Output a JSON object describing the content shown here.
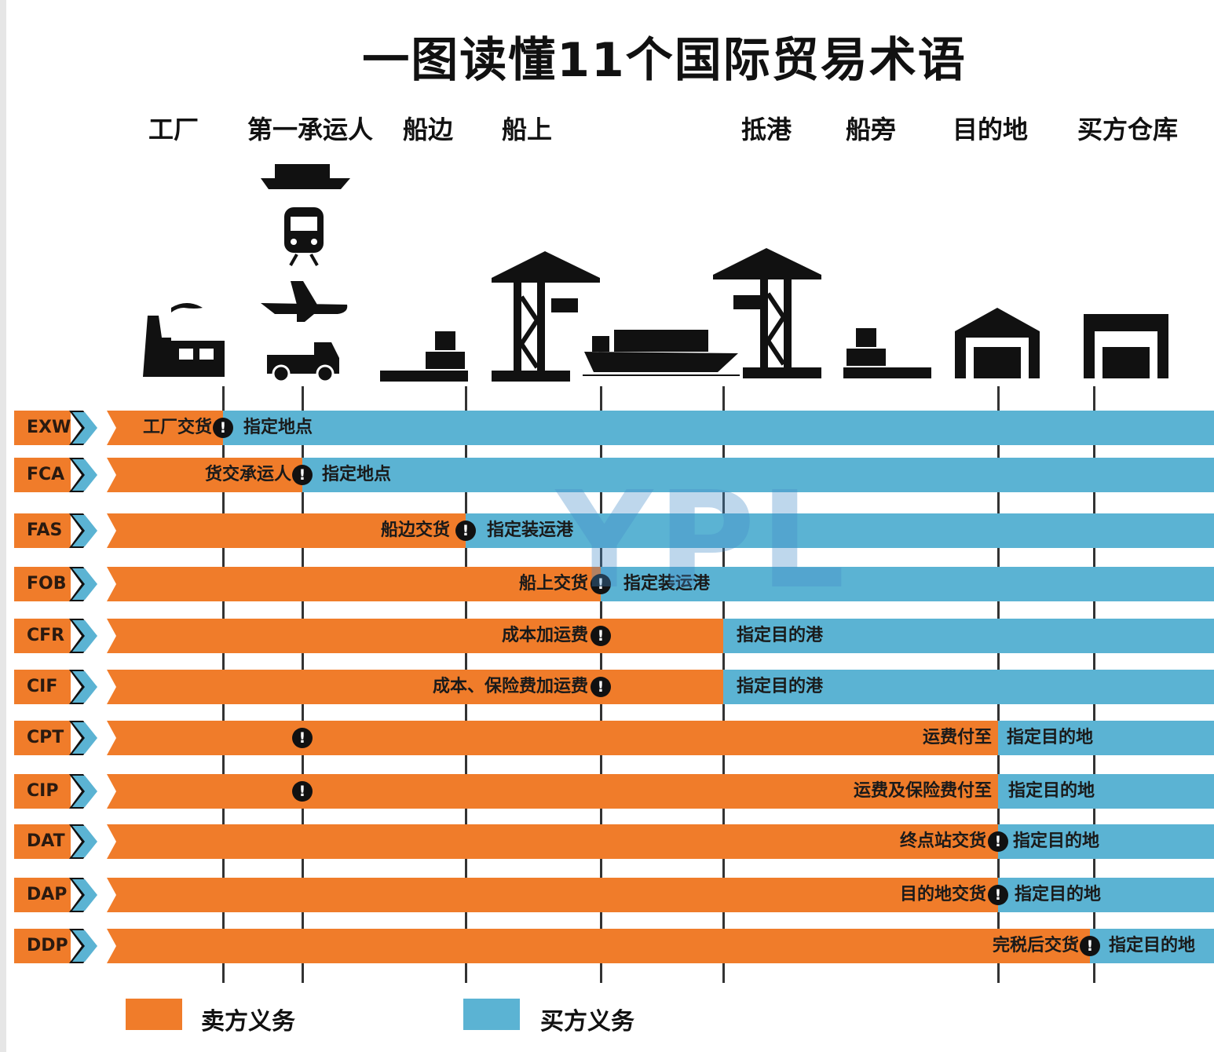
{
  "title": "一图读懂11个国际贸易术语",
  "locations": [
    "工厂",
    "第一承运人",
    "船边",
    "船上",
    "抵港",
    "船旁",
    "目的地",
    "买方仓库"
  ],
  "colors": {
    "seller": "#f07c2a",
    "buyer": "#5bb3d3"
  },
  "terms": [
    {
      "code": "EXW",
      "seller_label": "工厂交货",
      "buyer_label": "指定地点"
    },
    {
      "code": "FCA",
      "seller_label": "货交承运人",
      "buyer_label": "指定地点"
    },
    {
      "code": "FAS",
      "seller_label": "船边交货",
      "buyer_label": "指定装运港"
    },
    {
      "code": "FOB",
      "seller_label": "船上交货",
      "buyer_label": "指定装运港"
    },
    {
      "code": "CFR",
      "seller_label": "成本加运费",
      "buyer_label": "指定目的港"
    },
    {
      "code": "CIF",
      "seller_label": "成本、保险费加运费",
      "buyer_label": "指定目的港"
    },
    {
      "code": "CPT",
      "seller_label": "运费付至",
      "buyer_label": "指定目的地"
    },
    {
      "code": "CIP",
      "seller_label": "运费及保险费付至",
      "buyer_label": "指定目的地"
    },
    {
      "code": "DAT",
      "seller_label": "终点站交货",
      "buyer_label": "指定目的地"
    },
    {
      "code": "DAP",
      "seller_label": "目的地交货",
      "buyer_label": "指定目的地"
    },
    {
      "code": "DDP",
      "seller_label": "完税后交货",
      "buyer_label": "指定目的地"
    }
  ],
  "risk_marker": "!",
  "legend": {
    "seller": "卖方义务",
    "buyer": "买方义务"
  },
  "watermark": "YPL",
  "icons": [
    "factory-icon",
    "ship-icon",
    "train-icon",
    "plane-icon",
    "truck-icon",
    "cargo-icon",
    "crane-icon",
    "cargo-ship-icon",
    "crane-icon",
    "cargo-icon",
    "warehouse-icon",
    "warehouse-icon"
  ]
}
